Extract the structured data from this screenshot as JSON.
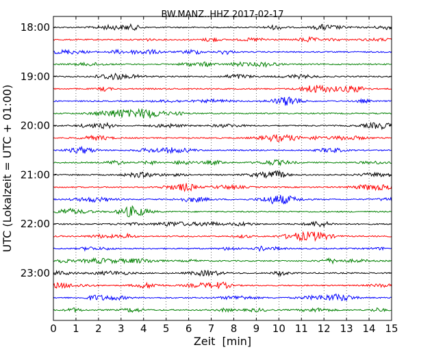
{
  "chart_data": {
    "type": "line",
    "title": "BW.MANZ..HHZ 2017-02-17",
    "xlabel": "Zeit  [min]",
    "ylabel": "UTC (Lokalzeit = UTC + 01:00)",
    "xlim": [
      0,
      15
    ],
    "x_ticks": [
      "0",
      "1",
      "2",
      "3",
      "4",
      "5",
      "6",
      "7",
      "8",
      "9",
      "10",
      "11",
      "12",
      "13",
      "14",
      "15"
    ],
    "y_ticks": [
      "18:00",
      "19:00",
      "20:00",
      "21:00",
      "22:00",
      "23:00"
    ],
    "grid": "vertical dotted",
    "row_interval_min": 15,
    "colors": [
      "#000000",
      "#ff0000",
      "#0000ff",
      "#008000"
    ],
    "series": [
      {
        "start": "18:00",
        "color": "#000000"
      },
      {
        "start": "18:15",
        "color": "#ff0000"
      },
      {
        "start": "18:30",
        "color": "#0000ff"
      },
      {
        "start": "18:45",
        "color": "#008000"
      },
      {
        "start": "19:00",
        "color": "#000000"
      },
      {
        "start": "19:15",
        "color": "#ff0000"
      },
      {
        "start": "19:30",
        "color": "#0000ff"
      },
      {
        "start": "19:45",
        "color": "#008000"
      },
      {
        "start": "20:00",
        "color": "#000000"
      },
      {
        "start": "20:15",
        "color": "#ff0000"
      },
      {
        "start": "20:30",
        "color": "#0000ff"
      },
      {
        "start": "20:45",
        "color": "#008000"
      },
      {
        "start": "21:00",
        "color": "#000000"
      },
      {
        "start": "21:15",
        "color": "#ff0000"
      },
      {
        "start": "21:30",
        "color": "#0000ff"
      },
      {
        "start": "21:45",
        "color": "#008000"
      },
      {
        "start": "22:00",
        "color": "#000000"
      },
      {
        "start": "22:15",
        "color": "#ff0000"
      },
      {
        "start": "22:30",
        "color": "#0000ff"
      },
      {
        "start": "22:45",
        "color": "#008000"
      },
      {
        "start": "23:00",
        "color": "#000000"
      },
      {
        "start": "23:15",
        "color": "#ff0000"
      },
      {
        "start": "23:30",
        "color": "#0000ff"
      },
      {
        "start": "23:45",
        "color": "#008000"
      }
    ]
  }
}
